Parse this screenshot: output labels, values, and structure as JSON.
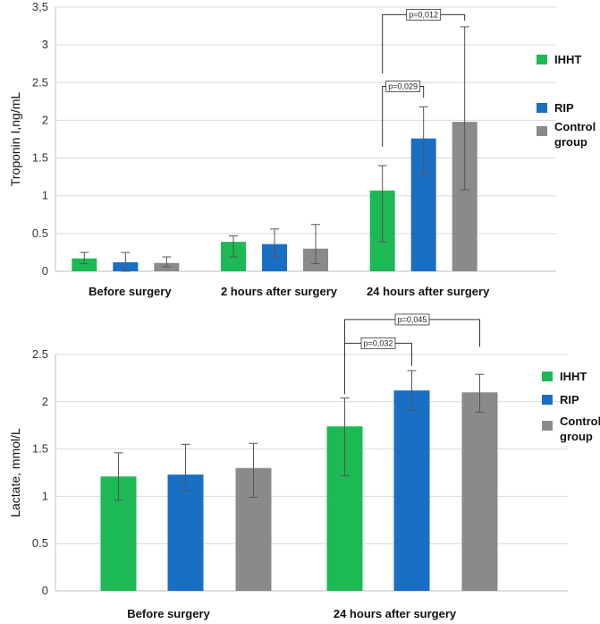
{
  "colors": {
    "ihht": "#1db954",
    "rip": "#1a6fc4",
    "control": "#8a8a8a",
    "grid": "#d9d9d9",
    "axis": "#bfbfbf",
    "errbar": "#555555",
    "bracket": "#333333"
  },
  "chart_data": [
    {
      "type": "bar",
      "title": "",
      "ylabel": "Troponin I,ng/mL",
      "xlabel": "",
      "ylim": [
        0,
        3.5
      ],
      "yticks": [
        "0",
        "0.5",
        "1",
        "1.5",
        "2",
        "2.5",
        "3",
        "3,5"
      ],
      "ytick_values": [
        0,
        0.5,
        1,
        1.5,
        2,
        2.5,
        3,
        3.5
      ],
      "grid": true,
      "legend": "right",
      "categories": [
        "Before surgery",
        "2 hours after surgery",
        "24 hours after surgery"
      ],
      "series": [
        {
          "name": "IHHT",
          "color_key": "ihht",
          "values": [
            0.17,
            0.39,
            1.07
          ],
          "err_low": [
            0.07,
            0.2,
            0.68
          ],
          "err_high": [
            0.08,
            0.08,
            0.33
          ]
        },
        {
          "name": "RIP",
          "color_key": "rip",
          "values": [
            0.12,
            0.36,
            1.76
          ],
          "err_low": [
            0.12,
            0.16,
            0.48
          ],
          "err_high": [
            0.13,
            0.2,
            0.42
          ]
        },
        {
          "name": "Control group",
          "color_key": "control",
          "values": [
            0.11,
            0.3,
            1.98
          ],
          "err_low": [
            0.05,
            0.2,
            0.9
          ],
          "err_high": [
            0.08,
            0.32,
            1.26
          ]
        }
      ],
      "annotations": [
        {
          "text": "p=0,029",
          "category": 2,
          "from_series": 0,
          "to_series": 1,
          "y_from": 1.65,
          "y_top": 2.45,
          "y_to": 2.3
        },
        {
          "text": "p=0,012",
          "category": 2,
          "from_series": 0,
          "to_series": 2,
          "y_from": 2.62,
          "y_top": 3.4,
          "y_to": 3.32
        }
      ]
    },
    {
      "type": "bar",
      "title": "",
      "ylabel": "Lactate, mmol/L",
      "xlabel": "",
      "ylim": [
        0,
        2.5
      ],
      "yticks": [
        "0",
        "0.5",
        "1",
        "1.5",
        "2",
        "2.5"
      ],
      "ytick_values": [
        0,
        0.5,
        1,
        1.5,
        2,
        2.5
      ],
      "grid": true,
      "legend": "right",
      "categories": [
        "Before surgery",
        "24 hours after surgery"
      ],
      "series": [
        {
          "name": "IHHT",
          "color_key": "ihht",
          "values": [
            1.21,
            1.74
          ],
          "err_low": [
            0.25,
            0.52
          ],
          "err_high": [
            0.25,
            0.3
          ]
        },
        {
          "name": "RIP",
          "color_key": "rip",
          "values": [
            1.23,
            2.12
          ],
          "err_low": [
            0.17,
            0.21
          ],
          "err_high": [
            0.32,
            0.21
          ]
        },
        {
          "name": "Control group",
          "color_key": "control",
          "values": [
            1.3,
            2.1
          ],
          "err_low": [
            0.31,
            0.21
          ],
          "err_high": [
            0.26,
            0.19
          ]
        }
      ],
      "annotations": [
        {
          "text": "p=0,032",
          "category": 1,
          "from_series": 0,
          "to_series": 1,
          "y_from": 2.08,
          "y_top": 2.62,
          "y_to": 2.38
        },
        {
          "text": "p=0,045",
          "category": 1,
          "from_series": 0,
          "to_series": 2,
          "y_from": 2.42,
          "y_top": 2.87,
          "y_to": 2.58
        }
      ]
    }
  ]
}
